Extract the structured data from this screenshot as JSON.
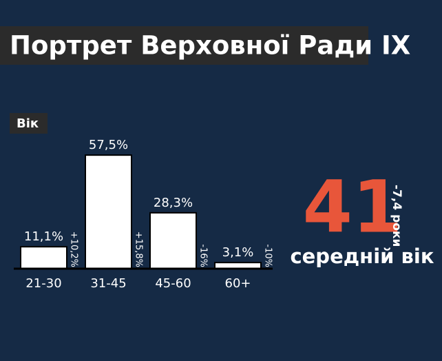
{
  "chart_data": {
    "type": "bar",
    "title": "Портрет Верховної Ради IX",
    "subtitle": "Вік",
    "categories": [
      "21-30",
      "31-45",
      "45-60",
      "60+"
    ],
    "values": [
      11.1,
      57.5,
      28.3,
      3.1
    ],
    "value_labels": [
      "11,1%",
      "57,5%",
      "28,3%",
      "3,1%"
    ],
    "change_labels": [
      "+10,2%",
      "+15,8%",
      "-16%",
      "-10%"
    ],
    "color": "#ffffff",
    "ylim": [
      0,
      60
    ],
    "average_age": 41,
    "average_change": "-7,4 роки",
    "average_label": "середній вік"
  }
}
